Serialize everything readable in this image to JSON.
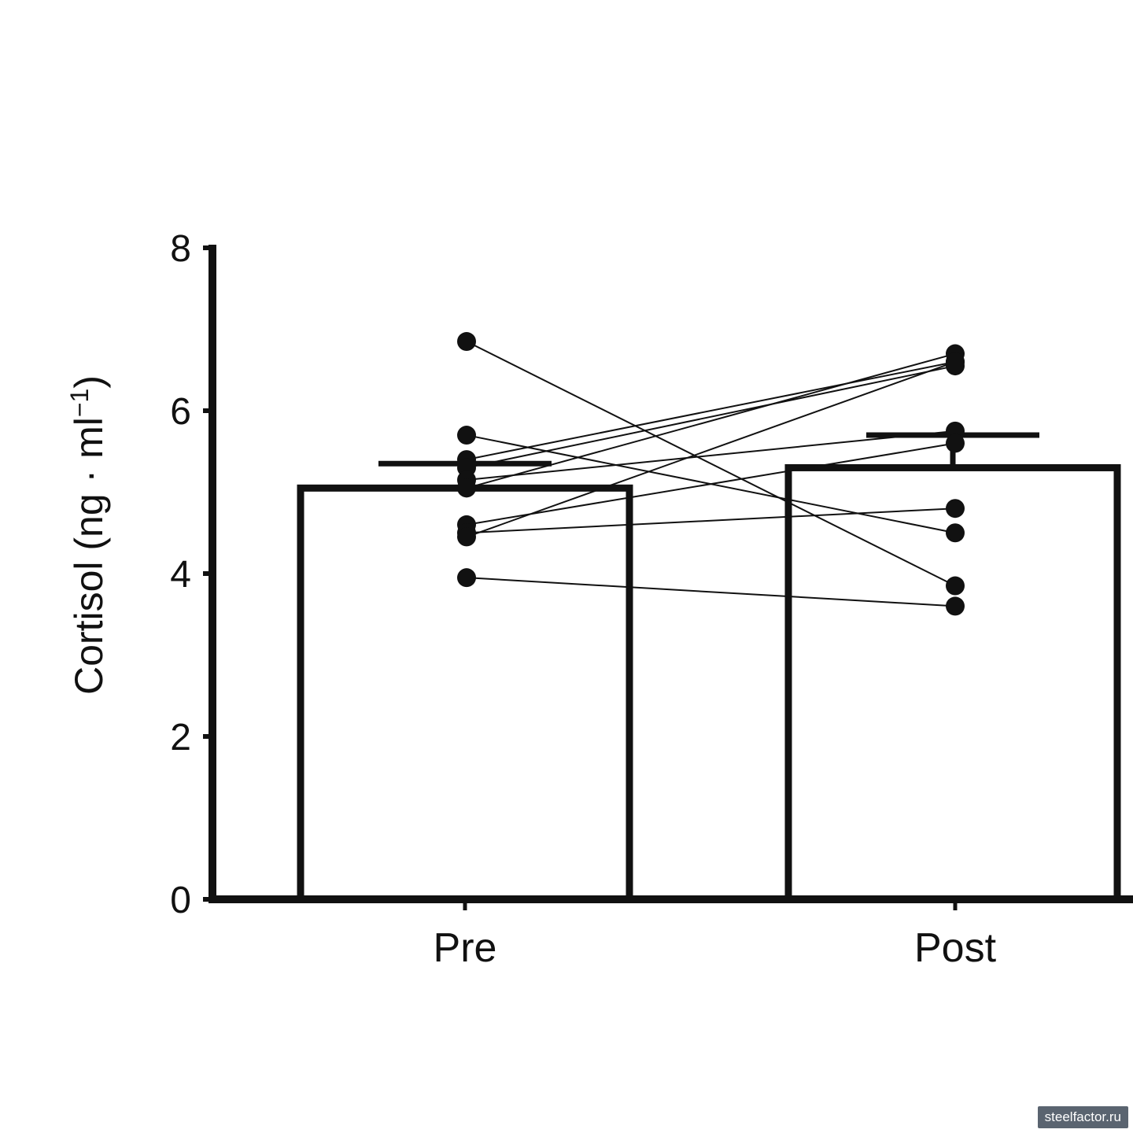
{
  "chart_data": {
    "type": "bar",
    "categories": [
      "Pre",
      "Post"
    ],
    "values": [
      5.05,
      5.3
    ],
    "error": [
      0.3,
      0.4
    ],
    "ylabel": "Cortisol  (ng · ml",
    "ylabel_sup": "−1",
    "ylabel_close": ")",
    "ylim": [
      0,
      8
    ],
    "yticks": [
      "0",
      "2",
      "4",
      "6",
      "8"
    ],
    "grid": false,
    "paired": [
      {
        "pre": 6.85,
        "post": 3.85
      },
      {
        "pre": 5.7,
        "post": 4.5
      },
      {
        "pre": 5.4,
        "post": 6.6
      },
      {
        "pre": 5.3,
        "post": 6.55
      },
      {
        "pre": 5.15,
        "post": 5.75
      },
      {
        "pre": 5.05,
        "post": 6.7
      },
      {
        "pre": 4.6,
        "post": 5.6
      },
      {
        "pre": 4.5,
        "post": 4.8
      },
      {
        "pre": 4.45,
        "post": 6.6
      },
      {
        "pre": 3.95,
        "post": 3.6
      }
    ],
    "colors": {
      "ink": "#111111",
      "bar_fill": "#ffffff"
    }
  },
  "watermark": "steelfactor.ru"
}
